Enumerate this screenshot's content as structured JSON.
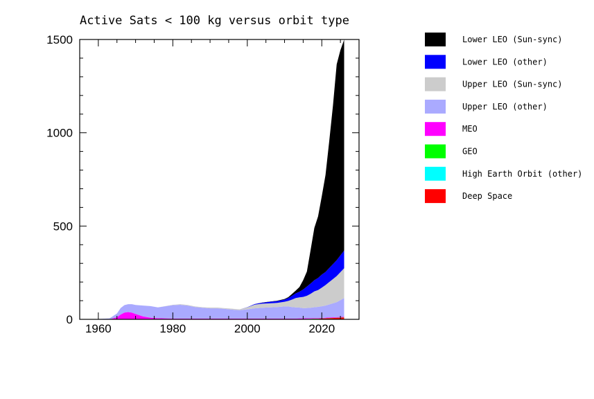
{
  "chart_data": {
    "type": "area",
    "title": "Active Sats < 100 kg versus orbit type",
    "xlabel": "",
    "ylabel": "",
    "xlim": [
      1955,
      2030
    ],
    "ylim": [
      0,
      1500
    ],
    "x_ticks": [
      1960,
      1980,
      2000,
      2020
    ],
    "y_ticks": [
      0,
      500,
      1000,
      1500
    ],
    "x_tick_labels": [
      "1960",
      "1980",
      "2000",
      "2020"
    ],
    "y_tick_labels": [
      "0",
      "500",
      "1000",
      "1500"
    ],
    "stacking": "stacked",
    "legend_position": "right",
    "grid": false,
    "x": [
      1957,
      1960,
      1963,
      1965,
      1966,
      1967,
      1968,
      1969,
      1970,
      1972,
      1974,
      1976,
      1978,
      1980,
      1982,
      1984,
      1986,
      1988,
      1990,
      1992,
      1994,
      1996,
      1997,
      1998,
      2000,
      2002,
      2004,
      2006,
      2008,
      2010,
      2011,
      2012,
      2013,
      2014,
      2015,
      2016,
      2017,
      2018,
      2019,
      2020,
      2021,
      2022,
      2023,
      2024,
      2025,
      2026
    ],
    "series": [
      {
        "name": "Deep Space",
        "color": "#ff0000",
        "values": [
          0,
          0,
          0,
          0,
          0,
          0,
          0,
          0,
          0,
          0,
          0,
          0,
          0,
          0,
          0,
          0,
          0,
          0,
          0,
          0,
          0,
          0,
          0,
          0,
          0,
          0,
          0,
          0,
          0,
          0,
          0,
          0,
          0,
          1,
          1,
          2,
          2,
          3,
          3,
          4,
          5,
          6,
          7,
          8,
          9,
          10
        ]
      },
      {
        "name": "High Earth Orbit (other)",
        "color": "#00ffff",
        "values": [
          0,
          0,
          0,
          0,
          0,
          0,
          0,
          0,
          0,
          0,
          0,
          0,
          0,
          0,
          0,
          0,
          0,
          0,
          0,
          0,
          0,
          0,
          0,
          0,
          0,
          0,
          0,
          0,
          0,
          0,
          0,
          0,
          0,
          0,
          0,
          0,
          0,
          0,
          0,
          0,
          0,
          0,
          0,
          0,
          0,
          0
        ]
      },
      {
        "name": "GEO",
        "color": "#00ff00",
        "values": [
          0,
          0,
          0,
          1,
          1,
          1,
          1,
          1,
          1,
          1,
          1,
          1,
          1,
          1,
          1,
          1,
          1,
          1,
          1,
          1,
          1,
          1,
          1,
          1,
          1,
          1,
          1,
          1,
          1,
          1,
          1,
          1,
          1,
          1,
          1,
          1,
          1,
          1,
          1,
          1,
          1,
          1,
          1,
          1,
          1,
          1
        ]
      },
      {
        "name": "MEO",
        "color": "#ff00ff",
        "values": [
          0,
          0,
          0,
          10,
          25,
          35,
          38,
          35,
          28,
          15,
          8,
          5,
          4,
          3,
          3,
          3,
          3,
          3,
          3,
          3,
          3,
          3,
          3,
          3,
          3,
          3,
          3,
          3,
          3,
          3,
          3,
          3,
          3,
          3,
          3,
          3,
          3,
          3,
          3,
          3,
          3,
          3,
          3,
          3,
          3,
          3
        ]
      },
      {
        "name": "Upper LEO (other)",
        "color": "#aaaaff",
        "values": [
          1,
          2,
          5,
          20,
          35,
          40,
          42,
          45,
          48,
          58,
          62,
          58,
          65,
          72,
          74,
          70,
          62,
          58,
          55,
          55,
          52,
          48,
          46,
          45,
          50,
          55,
          58,
          60,
          62,
          65,
          65,
          62,
          60,
          58,
          55,
          55,
          56,
          58,
          60,
          62,
          65,
          70,
          75,
          80,
          90,
          100
        ]
      },
      {
        "name": "Upper LEO (Sun-sync)",
        "color": "#cccccc",
        "values": [
          0,
          0,
          0,
          0,
          0,
          0,
          0,
          0,
          0,
          0,
          0,
          0,
          1,
          2,
          3,
          3,
          3,
          3,
          4,
          4,
          4,
          5,
          5,
          5,
          10,
          20,
          22,
          22,
          22,
          25,
          30,
          40,
          50,
          55,
          60,
          65,
          75,
          85,
          90,
          100,
          110,
          120,
          130,
          140,
          150,
          160
        ]
      },
      {
        "name": "Lower LEO (other)",
        "color": "#0000ff",
        "values": [
          0,
          0,
          0,
          0,
          0,
          0,
          0,
          0,
          0,
          0,
          0,
          0,
          0,
          0,
          0,
          0,
          0,
          0,
          0,
          0,
          0,
          0,
          0,
          0,
          1,
          3,
          5,
          8,
          10,
          12,
          15,
          20,
          25,
          30,
          40,
          50,
          55,
          60,
          65,
          70,
          70,
          75,
          80,
          85,
          90,
          95
        ]
      },
      {
        "name": "Lower LEO (Sun-sync)",
        "color": "#000000",
        "values": [
          0,
          0,
          0,
          0,
          0,
          0,
          0,
          0,
          0,
          0,
          0,
          0,
          0,
          0,
          0,
          0,
          0,
          0,
          0,
          0,
          0,
          0,
          0,
          0,
          0,
          0,
          1,
          1,
          2,
          3,
          5,
          10,
          15,
          25,
          50,
          80,
          180,
          280,
          330,
          420,
          520,
          680,
          850,
          1050,
          1100,
          1130
        ]
      }
    ]
  }
}
